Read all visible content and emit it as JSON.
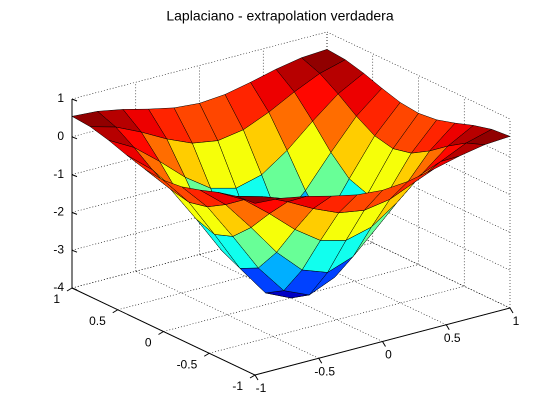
{
  "chart_data": {
    "type": "surface",
    "title": "Laplaciano - extrapolation verdadera",
    "x": [
      -1,
      -0.8,
      -0.6,
      -0.4,
      -0.2,
      0,
      0.2,
      0.4,
      0.6,
      0.8,
      1
    ],
    "y": [
      -1,
      -0.8,
      -0.6,
      -0.4,
      -0.2,
      0,
      0.2,
      0.4,
      0.6,
      0.8,
      1
    ],
    "z": [
      [
        0.541,
        0.497,
        0.37,
        0.201,
        0.057,
        0,
        0.057,
        0.201,
        0.37,
        0.497,
        0.541
      ],
      [
        0.497,
        0.311,
        0,
        -0.359,
        -0.648,
        -0.759,
        -0.648,
        -0.359,
        0,
        0.311,
        0.497
      ],
      [
        0.37,
        0,
        -0.545,
        -1.141,
        -1.609,
        -1.786,
        -1.609,
        -1.141,
        -0.545,
        0,
        0.37
      ],
      [
        0.201,
        -0.359,
        -1.141,
        -1.975,
        -2.62,
        -2.863,
        -2.62,
        -1.975,
        -1.141,
        -0.359,
        0.201
      ],
      [
        0.057,
        -0.648,
        -1.609,
        -2.62,
        -3.397,
        -3.689,
        -3.397,
        -2.62,
        -1.609,
        -0.648,
        0.057
      ],
      [
        0,
        -0.759,
        -1.786,
        -2.863,
        -3.689,
        -4,
        -3.689,
        -2.863,
        -1.786,
        -0.759,
        0
      ],
      [
        0.057,
        -0.648,
        -1.609,
        -2.62,
        -3.397,
        -3.689,
        -3.397,
        -2.62,
        -1.609,
        -0.648,
        0.057
      ],
      [
        0.201,
        -0.359,
        -1.141,
        -1.975,
        -2.62,
        -2.863,
        -2.62,
        -1.975,
        -1.141,
        -0.359,
        0.201
      ],
      [
        0.37,
        0,
        -0.545,
        -1.141,
        -1.609,
        -1.786,
        -1.609,
        -1.141,
        -0.545,
        0,
        0.37
      ],
      [
        0.497,
        0.311,
        0,
        -0.359,
        -0.648,
        -0.759,
        -0.648,
        -0.359,
        0,
        0.311,
        0.497
      ],
      [
        0.541,
        0.497,
        0.37,
        0.201,
        0.057,
        0,
        0.057,
        0.201,
        0.37,
        0.497,
        0.541
      ]
    ],
    "xlim": [
      -1,
      1
    ],
    "ylim": [
      -1,
      1
    ],
    "zlim": [
      -4,
      1
    ],
    "xticks": [
      -1,
      -0.5,
      0,
      0.5,
      1
    ],
    "yticks": [
      -1,
      -0.5,
      0,
      0.5,
      1
    ],
    "zticks": [
      -4,
      -3,
      -2,
      -1,
      0,
      1
    ],
    "colormap": "jet",
    "grid": true
  }
}
